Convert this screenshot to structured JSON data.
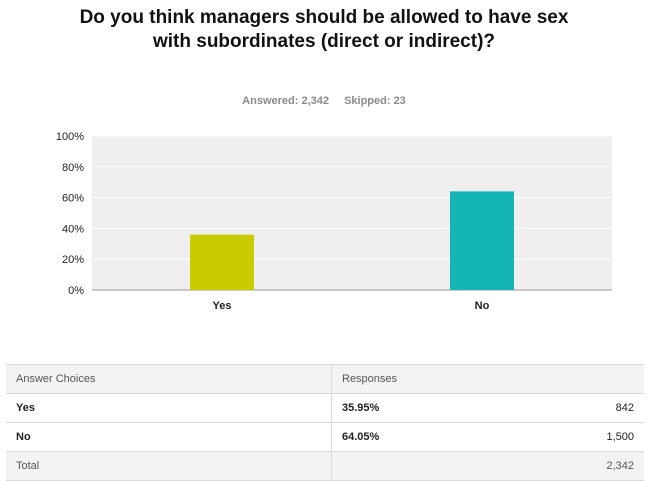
{
  "title": "Do you think managers should be allowed to have sex with subordinates (direct or indirect)?",
  "answered": "Answered: 2,342",
  "skipped": "Skipped: 23",
  "chart_data": {
    "type": "bar",
    "title": "Do you think managers should be allowed to have sex with subordinates (direct or indirect)?",
    "categories": [
      "Yes",
      "No"
    ],
    "values": [
      35.95,
      64.05
    ],
    "ylim": [
      0,
      100
    ],
    "yticks": [
      "0%",
      "20%",
      "40%",
      "60%",
      "80%",
      "100%"
    ],
    "grid": true,
    "colors": [
      "#c8cc00",
      "#16b5b5"
    ],
    "plot_background": "#efefef"
  },
  "table": {
    "headers": [
      "Answer Choices",
      "Responses"
    ],
    "rows": [
      {
        "choice": "Yes",
        "percent": "35.95%",
        "count": "842"
      },
      {
        "choice": "No",
        "percent": "64.05%",
        "count": "1,500"
      }
    ],
    "total": {
      "label": "Total",
      "count": "2,342"
    }
  }
}
